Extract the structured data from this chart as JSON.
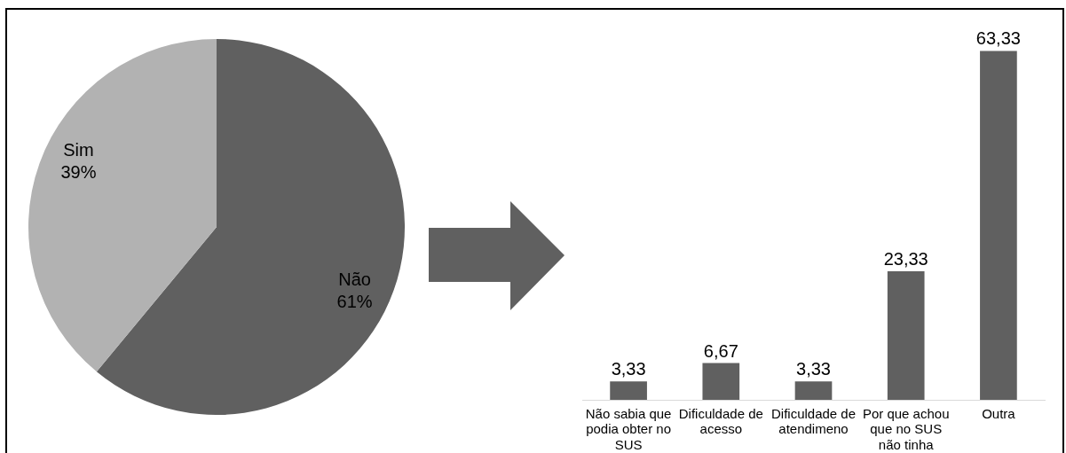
{
  "chart_data": [
    {
      "type": "pie",
      "categories": [
        "Não",
        "Sim"
      ],
      "values": [
        61,
        39
      ],
      "colors": [
        "#606060",
        "#b2b2b2"
      ],
      "value_labels": [
        "61%",
        "39%"
      ]
    },
    {
      "type": "bar",
      "categories": [
        "Não sabia que podia obter no SUS",
        "Dificuldade de acesso",
        "Dificuldade de atendimeno",
        "Por que achou que no SUS não tinha",
        "Outra"
      ],
      "values": [
        3.33,
        6.67,
        3.33,
        23.33,
        63.33
      ],
      "color": "#606060",
      "value_labels": [
        "3,33",
        "6,67",
        "3,33",
        "23,33",
        "63,33"
      ]
    }
  ]
}
